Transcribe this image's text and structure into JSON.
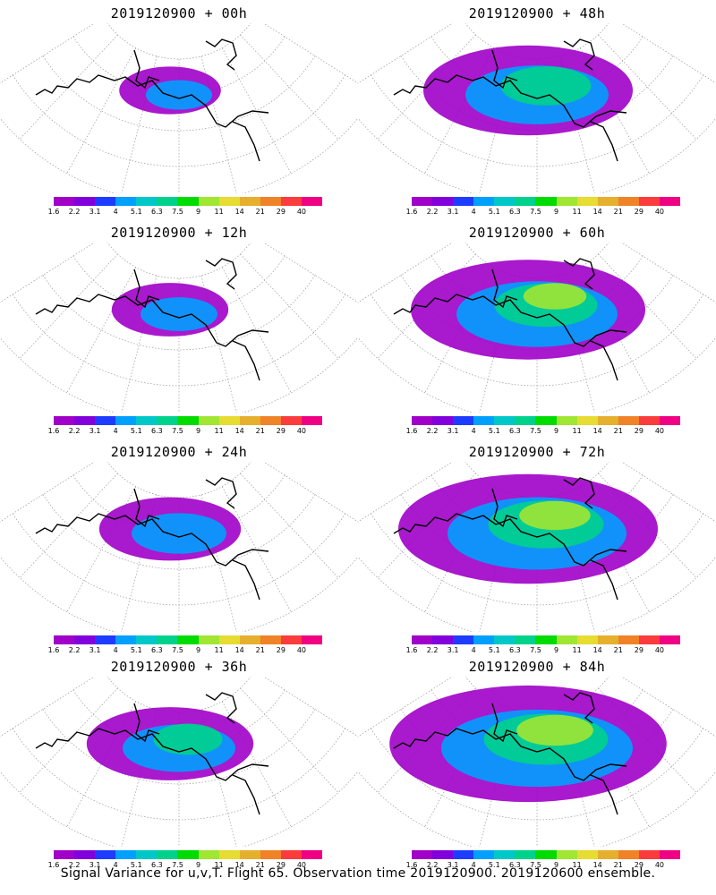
{
  "caption": "Signal Variance for u,v,T. Flight 65. Observation time 2019120900. 2019120600 ensemble.",
  "colorbar": {
    "labels": [
      "1.6",
      "2.2",
      "3.1",
      "4",
      "5.1",
      "6.3",
      "7.5",
      "9",
      "11",
      "14",
      "21",
      "29",
      "40"
    ],
    "colors": [
      "#a000c8",
      "#8200dc",
      "#1e3cff",
      "#00a0ff",
      "#00c8c8",
      "#00d28c",
      "#00dc00",
      "#a0e632",
      "#e6dc32",
      "#e6af2d",
      "#f08228",
      "#fa3c3c",
      "#f00082"
    ]
  },
  "panels": [
    {
      "id": "p00",
      "title": "2019120900 + 00h",
      "coverage": 0.12,
      "peak": "3.1"
    },
    {
      "id": "p48",
      "title": "2019120900 + 48h",
      "coverage": 0.55,
      "peak": "11"
    },
    {
      "id": "p12",
      "title": "2019120900 + 12h",
      "coverage": 0.18,
      "peak": "5.1"
    },
    {
      "id": "p60",
      "title": "2019120900 + 60h",
      "coverage": 0.65,
      "peak": "11"
    },
    {
      "id": "p24",
      "title": "2019120900 + 24h",
      "coverage": 0.28,
      "peak": "9"
    },
    {
      "id": "p72",
      "title": "2019120900 + 72h",
      "coverage": 0.75,
      "peak": "11"
    },
    {
      "id": "p36",
      "title": "2019120900 + 36h",
      "coverage": 0.38,
      "peak": "7.5"
    },
    {
      "id": "p84",
      "title": "2019120900 + 84h",
      "coverage": 0.82,
      "peak": "14"
    }
  ]
}
